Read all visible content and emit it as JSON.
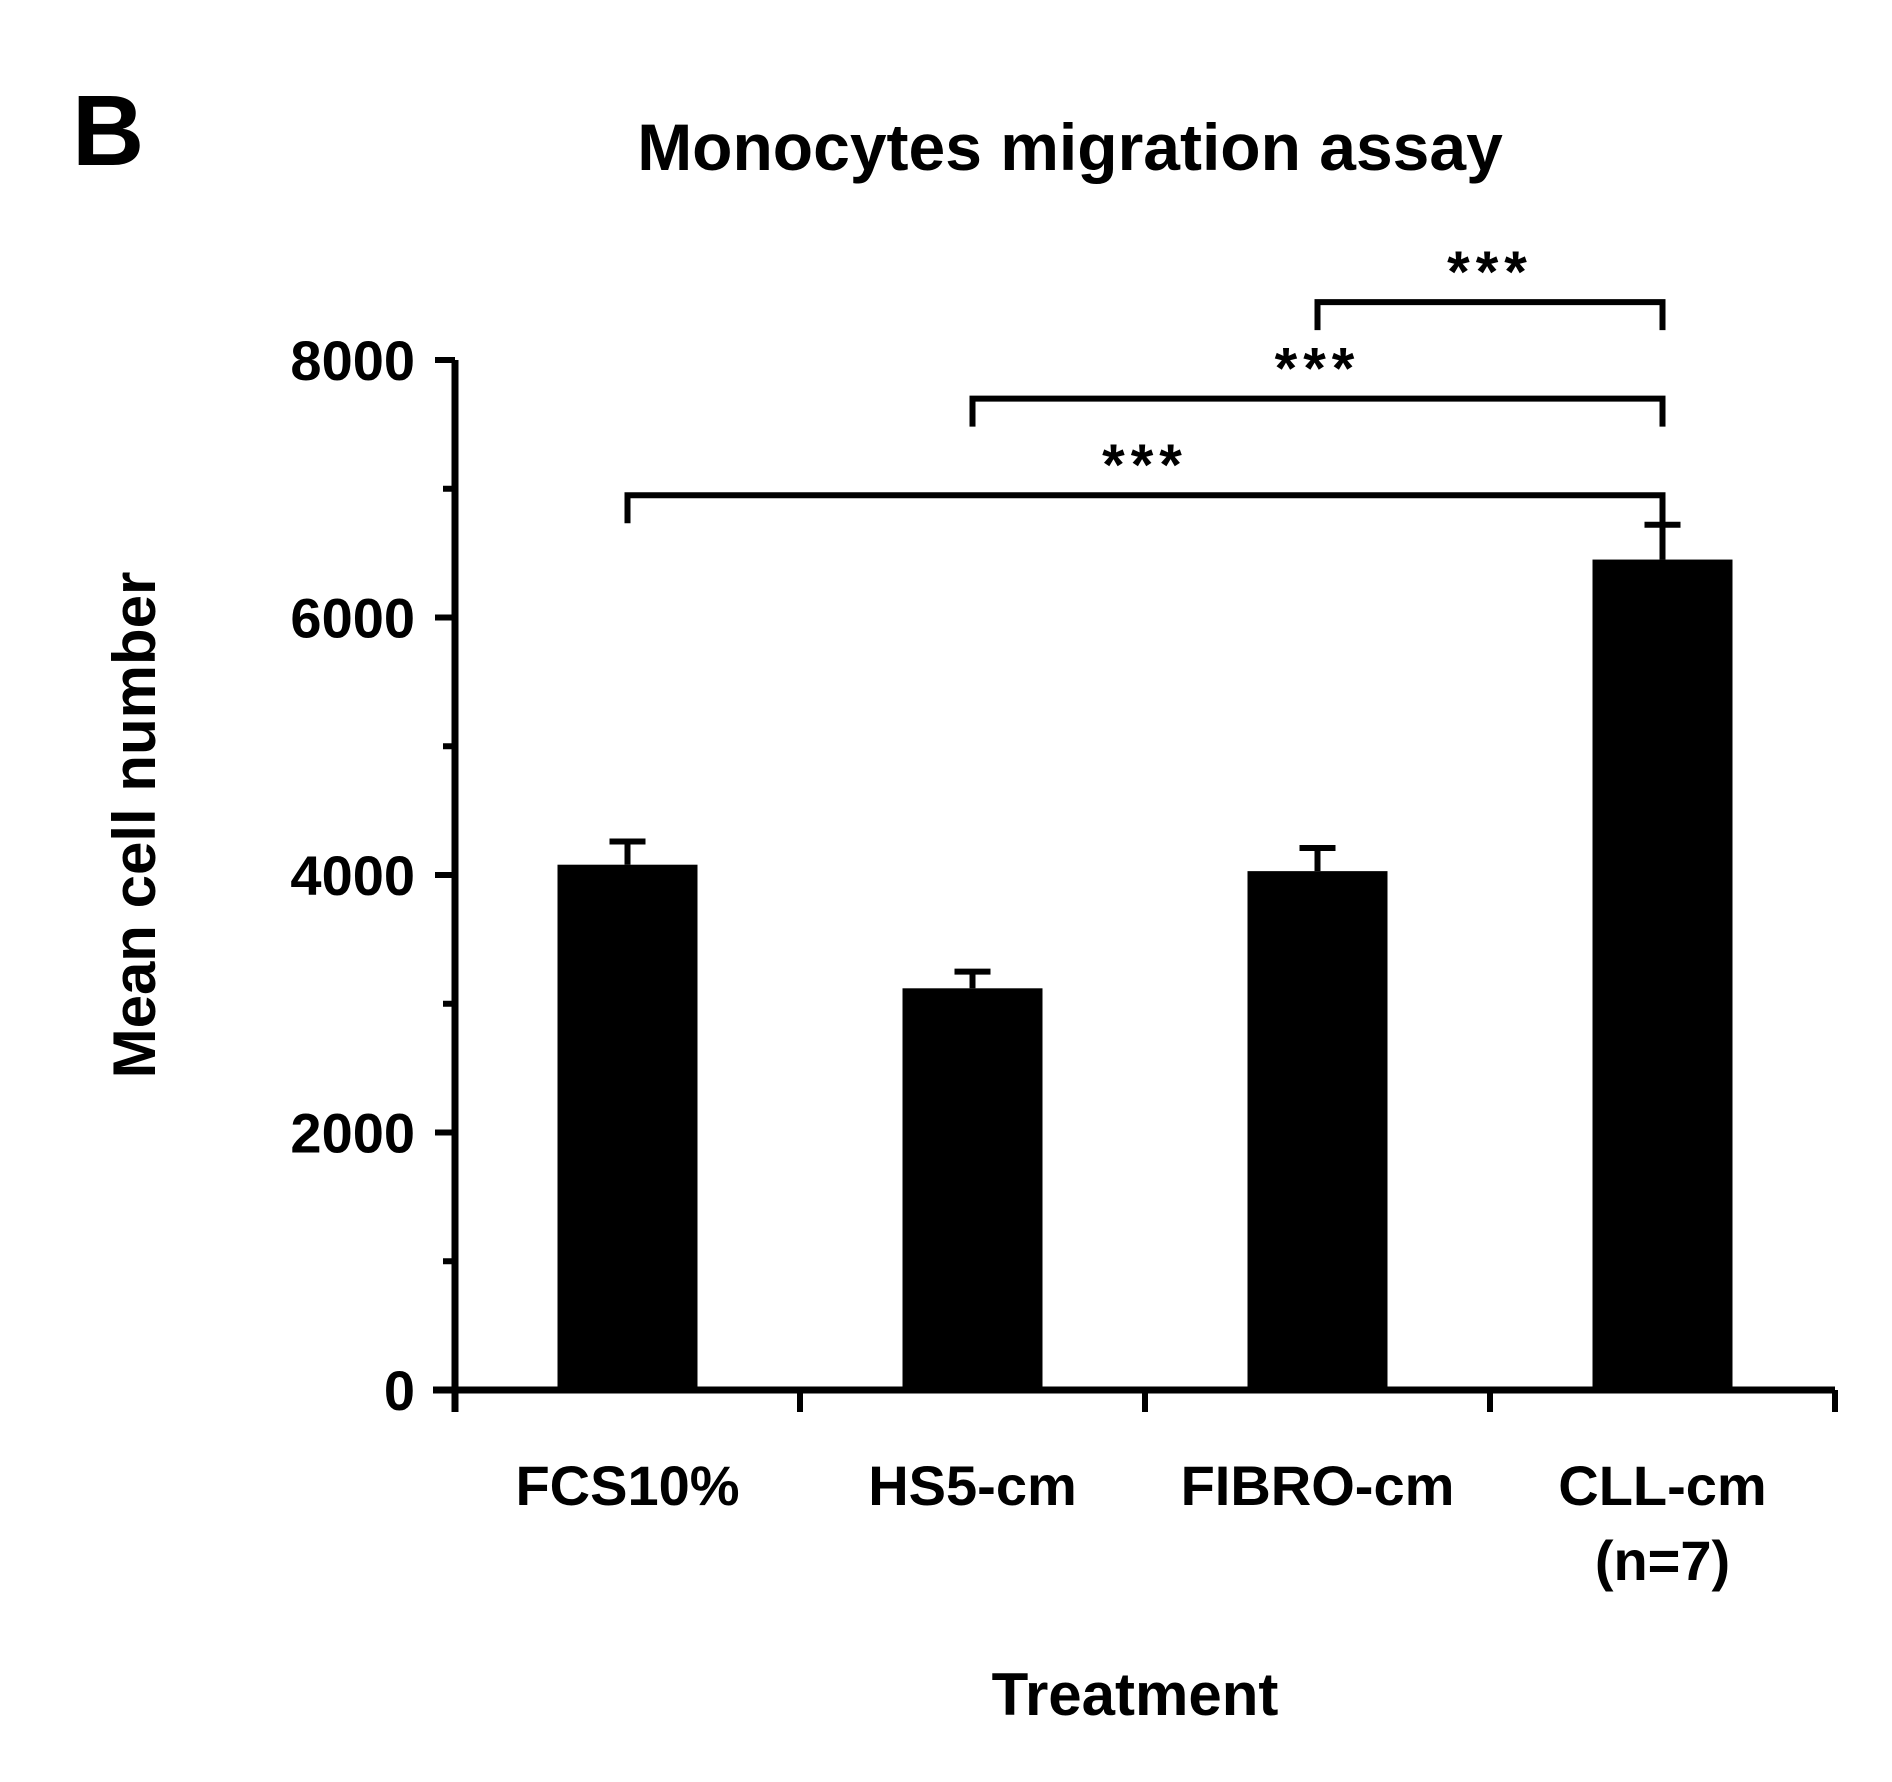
{
  "panel_label": "B",
  "chart_data": {
    "type": "bar",
    "title": "Monocytes migration assay",
    "xlabel": "Treatment",
    "ylabel": "Mean cell number",
    "categories": [
      [
        "FCS10%"
      ],
      [
        "HS5-cm"
      ],
      [
        "FIBRO-cm"
      ],
      [
        "CLL-cm",
        "(n=7)"
      ]
    ],
    "values": [
      4080,
      3120,
      4030,
      6450
    ],
    "errors": [
      180,
      130,
      180,
      270
    ],
    "ylim": [
      0,
      8000
    ],
    "yticks": [
      0,
      2000,
      4000,
      6000,
      8000
    ],
    "yminor_ticks": [
      1000,
      3000,
      5000,
      7000
    ],
    "bar_color": "#000000",
    "grid": false,
    "significance": [
      {
        "from": 0,
        "to": 3,
        "label": "***",
        "level": 6950
      },
      {
        "from": 1,
        "to": 3,
        "label": "***",
        "level": 7700
      },
      {
        "from": 2,
        "to": 3,
        "label": "***",
        "level": 8450
      }
    ]
  }
}
